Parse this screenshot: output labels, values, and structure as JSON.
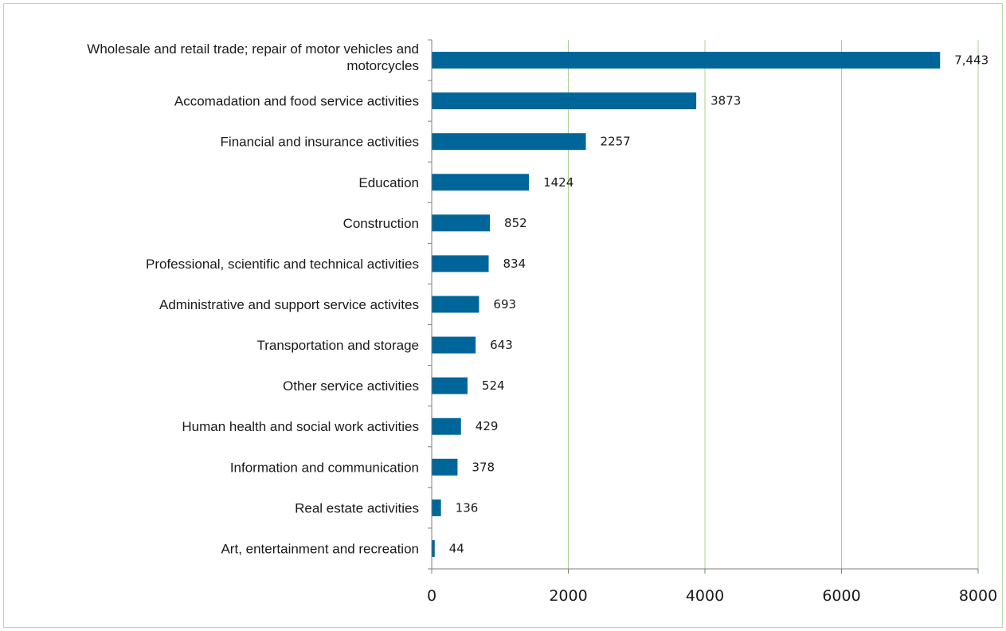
{
  "colors": {
    "bar": "#006699",
    "gridline": "#a8d08d",
    "axis": "#7f7f7f",
    "frame_border": "#b9d8a4"
  },
  "chart_data": {
    "type": "bar",
    "orientation": "horizontal",
    "categories": [
      "Wholesale and retail trade; repair of motor vehicles and motorcycles",
      "Accomadation and food service activities",
      "Financial and insurance activities",
      "Education",
      "Construction",
      "Professional, scientific and technical activities",
      "Administrative and support service activites",
      "Transportation and storage",
      "Other service activities",
      "Human health and social work activities",
      "Information and communication",
      "Real estate activities",
      "Art, entertainment and recreation"
    ],
    "category_lines": [
      [
        "Wholesale and retail trade; repair of motor vehicles and",
        "motorcycles"
      ],
      [
        "Accomadation and food service activities"
      ],
      [
        "Financial and insurance activities"
      ],
      [
        "Education"
      ],
      [
        "Construction"
      ],
      [
        "Professional, scientific and technical activities"
      ],
      [
        "Administrative and support service activites"
      ],
      [
        "Transportation and storage"
      ],
      [
        "Other service activities"
      ],
      [
        "Human health and social work activities"
      ],
      [
        "Information and communication"
      ],
      [
        "Real estate activities"
      ],
      [
        "Art, entertainment and recreation"
      ]
    ],
    "values": [
      7443,
      3873,
      2257,
      1424,
      852,
      834,
      693,
      643,
      524,
      429,
      378,
      136,
      44
    ],
    "value_labels": [
      "7,443",
      "3873",
      "2257",
      "1424",
      "852",
      "834",
      "693",
      "643",
      "524",
      "429",
      "378",
      "136",
      "44"
    ],
    "xlim": [
      0,
      8000
    ],
    "xticks": [
      0,
      2000,
      4000,
      6000,
      8000
    ],
    "xtick_labels": [
      "0",
      "2000",
      "4000",
      "6000",
      "8000"
    ],
    "grid": "vertical major gridlines",
    "legend": "none"
  }
}
